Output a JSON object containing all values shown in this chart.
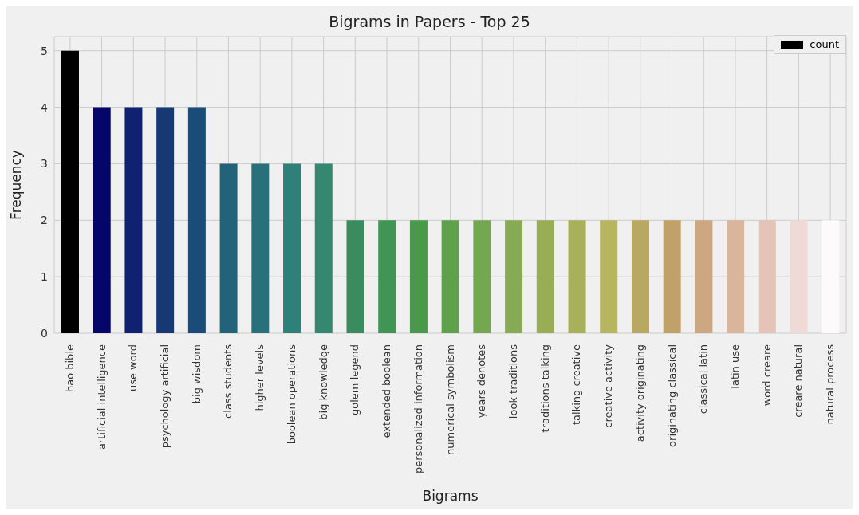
{
  "chart_data": {
    "type": "bar",
    "title": "Bigrams in Papers - Top 25",
    "xlabel": "Bigrams",
    "ylabel": "Frequency",
    "categories": [
      "hao bible",
      "artificial intelligence",
      "use word",
      "psychology artificial",
      "big wisdom",
      "class students",
      "higher levels",
      "boolean operations",
      "big knowledge",
      "golem legend",
      "extended boolean",
      "personalized information",
      "numerical symbolism",
      "years denotes",
      "look traditions",
      "traditions talking",
      "talking creative",
      "creative activity",
      "activity originating",
      "originating classical",
      "classical latin",
      "latin use",
      "word creare",
      "creare natural",
      "natural process"
    ],
    "series": [
      {
        "name": "count",
        "color": "#000000",
        "values": [
          5,
          4,
          4,
          4,
          4,
          3,
          3,
          3,
          3,
          2,
          2,
          2,
          2,
          2,
          2,
          2,
          2,
          2,
          2,
          2,
          2,
          2,
          2,
          2,
          2
        ],
        "colors": [
          "#000000",
          "#05056a",
          "#0f2170",
          "#163873",
          "#1b4b78",
          "#22627a",
          "#29717a",
          "#30807a",
          "#36876f",
          "#3a8b5e",
          "#409555",
          "#489a48",
          "#5fa04b",
          "#74a850",
          "#87aa55",
          "#99ad57",
          "#a8b05b",
          "#b7b462",
          "#b9a862",
          "#c0a169",
          "#cca882",
          "#d9b59c",
          "#e4c3b8",
          "#f0dad7",
          "#fcfafa"
        ]
      }
    ],
    "ylim": [
      0,
      5.25
    ],
    "yticks": [
      0,
      1,
      2,
      3,
      4,
      5
    ],
    "grid": true,
    "legend": "top right"
  }
}
